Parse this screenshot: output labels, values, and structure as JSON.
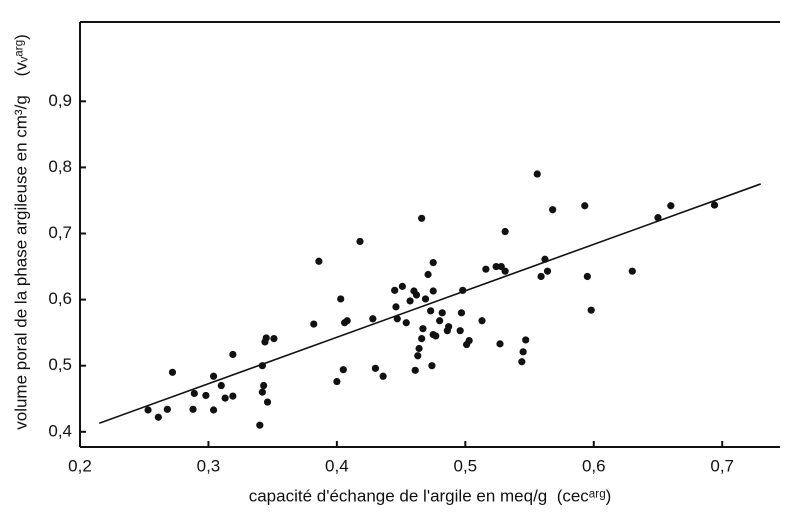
{
  "chart_data": {
    "type": "scatter",
    "xlabel": "capacité d'échange de l'argile en meq/g  (cecᵃʳᵍ)",
    "ylabel": "volume poral de la phase argileuse en cm³/g    (vᵥᵃʳᵍ)",
    "color": "#111111",
    "x": [
      0.253,
      0.261,
      0.268,
      0.272,
      0.288,
      0.289,
      0.298,
      0.304,
      0.304,
      0.31,
      0.313,
      0.319,
      0.319,
      0.34,
      0.342,
      0.342,
      0.343,
      0.344,
      0.345,
      0.346,
      0.351,
      0.382,
      0.386,
      0.4,
      0.403,
      0.405,
      0.406,
      0.408,
      0.418,
      0.428,
      0.43,
      0.436,
      0.445,
      0.446,
      0.447,
      0.451,
      0.454,
      0.457,
      0.46,
      0.462,
      0.461,
      0.463,
      0.464,
      0.466,
      0.466,
      0.467,
      0.469,
      0.471,
      0.473,
      0.475,
      0.475,
      0.474,
      0.475,
      0.477,
      0.48,
      0.482,
      0.486,
      0.487,
      0.496,
      0.497,
      0.498,
      0.501,
      0.503,
      0.513,
      0.516,
      0.524,
      0.527,
      0.528,
      0.531,
      0.531,
      0.544,
      0.545,
      0.547,
      0.556,
      0.559,
      0.562,
      0.564,
      0.568,
      0.593,
      0.595,
      0.598,
      0.63,
      0.65,
      0.66,
      0.694
    ],
    "y": [
      0.433,
      0.422,
      0.434,
      0.49,
      0.434,
      0.458,
      0.455,
      0.484,
      0.433,
      0.47,
      0.451,
      0.517,
      0.454,
      0.41,
      0.5,
      0.46,
      0.47,
      0.536,
      0.542,
      0.445,
      0.541,
      0.563,
      0.658,
      0.476,
      0.601,
      0.494,
      0.565,
      0.568,
      0.688,
      0.571,
      0.496,
      0.484,
      0.614,
      0.589,
      0.571,
      0.62,
      0.565,
      0.598,
      0.613,
      0.607,
      0.493,
      0.515,
      0.526,
      0.541,
      0.723,
      0.556,
      0.601,
      0.638,
      0.583,
      0.613,
      0.656,
      0.5,
      0.547,
      0.545,
      0.568,
      0.58,
      0.553,
      0.559,
      0.553,
      0.58,
      0.614,
      0.532,
      0.538,
      0.568,
      0.646,
      0.65,
      0.533,
      0.65,
      0.643,
      0.703,
      0.506,
      0.521,
      0.539,
      0.79,
      0.635,
      0.661,
      0.643,
      0.736,
      0.742,
      0.635,
      0.584,
      0.643,
      0.724,
      0.742,
      0.743
    ],
    "fit": {
      "x": [
        0.215,
        0.73
      ],
      "y": [
        0.413,
        0.775
      ]
    },
    "xlim": [
      0.2,
      0.745
    ],
    "ylim": [
      0.377,
      1.02
    ],
    "xticks": [
      {
        "value": 0.2,
        "label": "0,2"
      },
      {
        "value": 0.3,
        "label": "0,3"
      },
      {
        "value": 0.4,
        "label": "0,4"
      },
      {
        "value": 0.5,
        "label": "0,5"
      },
      {
        "value": 0.6,
        "label": "0,6"
      },
      {
        "value": 0.7,
        "label": "0,7"
      }
    ],
    "yticks": [
      {
        "value": 0.4,
        "label": "0,4"
      },
      {
        "value": 0.5,
        "label": "0,5"
      },
      {
        "value": 0.6,
        "label": "0,6"
      },
      {
        "value": 0.7,
        "label": "0,7"
      },
      {
        "value": 0.8,
        "label": "0,8"
      },
      {
        "value": 0.9,
        "label": "0,9"
      }
    ]
  }
}
